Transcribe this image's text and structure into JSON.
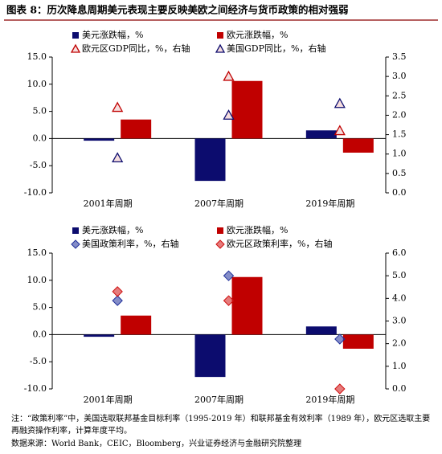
{
  "title": "图表 8：历次降息周期美元表现主要反映美欧之间经济与货币政策的相对强弱",
  "note": "注：“政策利率”中，美国选取联邦基金目标利率（1995-2019 年）和联邦基金有效利率（1989 年），欧元区选取主要再融资操作利率，计算年度平均。",
  "source": "数据来源：World Bank，CEIC，Bloomberg，兴业证券经济与金融研究院整理",
  "chart_data": [
    {
      "type": "bar",
      "categories": [
        "2001年周期",
        "2007年周期",
        "2019年周期"
      ],
      "ylim": [
        -10,
        15
      ],
      "yticks": [
        {
          "value": -10,
          "label": "-10.0"
        },
        {
          "value": -5,
          "label": "-5.0"
        },
        {
          "value": 0,
          "label": "0.0"
        },
        {
          "value": 5,
          "label": "5.0"
        },
        {
          "value": 10,
          "label": "10.0"
        },
        {
          "value": 15,
          "label": "15.0"
        }
      ],
      "y2lim": [
        0,
        3.5
      ],
      "y2ticks": [
        {
          "value": 0,
          "label": "0.0"
        },
        {
          "value": 0.5,
          "label": "0.5"
        },
        {
          "value": 1,
          "label": "1.0"
        },
        {
          "value": 1.5,
          "label": "1.5"
        },
        {
          "value": 2,
          "label": "2.0"
        },
        {
          "value": 2.5,
          "label": "2.5"
        },
        {
          "value": 3,
          "label": "3.0"
        },
        {
          "value": 3.5,
          "label": "3.5"
        }
      ],
      "grid": false,
      "series": [
        {
          "name": "美元涨跌幅，%",
          "type": "bar",
          "color": "#0c0c6e",
          "values": [
            -0.4,
            -7.8,
            1.5
          ]
        },
        {
          "name": "欧元涨跌幅，%",
          "type": "bar",
          "color": "#c00000",
          "values": [
            3.5,
            10.6,
            -2.6
          ]
        },
        {
          "name": "欧元区GDP同比，%，右轴",
          "type": "scatter",
          "marker": "triangle",
          "color": "#c00000",
          "axis": "y2",
          "values": [
            2.2,
            3.0,
            1.6
          ]
        },
        {
          "name": "美国GDP同比，%，右轴",
          "type": "scatter",
          "marker": "triangle",
          "color": "#0c0c6e",
          "axis": "y2",
          "values": [
            0.9,
            2.0,
            2.3
          ]
        }
      ]
    },
    {
      "type": "bar",
      "categories": [
        "2001年周期",
        "2007年周期",
        "2019年周期"
      ],
      "ylim": [
        -10,
        15
      ],
      "yticks": [
        {
          "value": -10,
          "label": "-10.0"
        },
        {
          "value": -5,
          "label": "-5.0"
        },
        {
          "value": 0,
          "label": "0.0"
        },
        {
          "value": 5,
          "label": "5.0"
        },
        {
          "value": 10,
          "label": "10.0"
        },
        {
          "value": 15,
          "label": "15.0"
        }
      ],
      "y2lim": [
        0,
        6
      ],
      "y2ticks": [
        {
          "value": 0,
          "label": "0.0"
        },
        {
          "value": 1,
          "label": "1.0"
        },
        {
          "value": 2,
          "label": "2.0"
        },
        {
          "value": 3,
          "label": "3.0"
        },
        {
          "value": 4,
          "label": "4.0"
        },
        {
          "value": 5,
          "label": "5.0"
        },
        {
          "value": 6,
          "label": "6.0"
        }
      ],
      "grid": false,
      "series": [
        {
          "name": "美元涨跌幅，%",
          "type": "bar",
          "color": "#0c0c6e",
          "values": [
            -0.4,
            -7.8,
            1.5
          ]
        },
        {
          "name": "欧元涨跌幅，%",
          "type": "bar",
          "color": "#c00000",
          "values": [
            3.5,
            10.6,
            -2.6
          ]
        },
        {
          "name": "美国政策利率，%，右轴",
          "type": "scatter",
          "marker": "diamond",
          "color": "#1f2f9a",
          "axis": "y2",
          "values": [
            3.9,
            5.0,
            2.2
          ]
        },
        {
          "name": "欧元区政策利率，%，右轴",
          "type": "scatter",
          "marker": "diamond",
          "color": "#d01010",
          "axis": "y2",
          "values": [
            4.3,
            3.9,
            0.0
          ]
        }
      ]
    }
  ]
}
